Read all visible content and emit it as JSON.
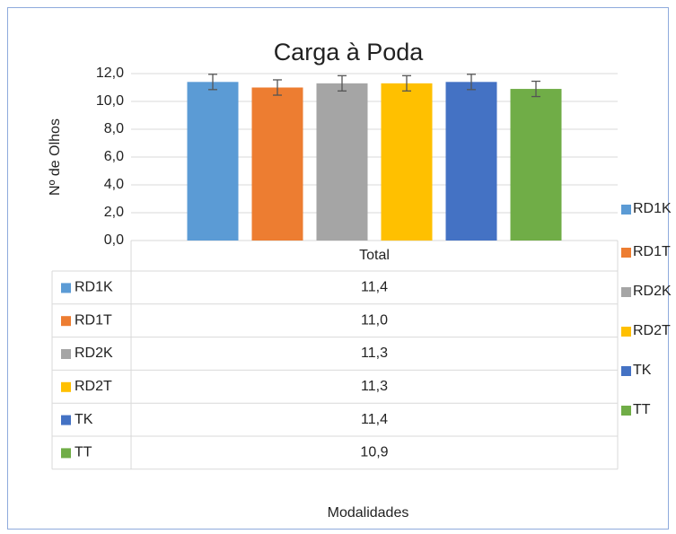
{
  "chart_data": {
    "type": "bar",
    "title": "Carga à Poda",
    "y_label": "Nº de Olhos",
    "x_label": "Modalidades",
    "categories": [
      "Total"
    ],
    "series": [
      {
        "name": "RD1K",
        "color": "#5b9bd5",
        "values": [
          11.4
        ],
        "value_labels": [
          "11,4"
        ],
        "errors": [
          0.55
        ]
      },
      {
        "name": "RD1T",
        "color": "#ed7d31",
        "values": [
          11.0
        ],
        "value_labels": [
          "11,0"
        ],
        "errors": [
          0.55
        ]
      },
      {
        "name": "RD2K",
        "color": "#a5a5a5",
        "values": [
          11.3
        ],
        "value_labels": [
          "11,3"
        ],
        "errors": [
          0.55
        ]
      },
      {
        "name": "RD2T",
        "color": "#ffc000",
        "values": [
          11.3
        ],
        "value_labels": [
          "11,3"
        ],
        "errors": [
          0.55
        ]
      },
      {
        "name": "TK",
        "color": "#4472c4",
        "values": [
          11.4
        ],
        "value_labels": [
          "11,4"
        ],
        "errors": [
          0.55
        ]
      },
      {
        "name": "TT",
        "color": "#70ad47",
        "values": [
          10.9
        ],
        "value_labels": [
          "10,9"
        ],
        "errors": [
          0.55
        ]
      }
    ],
    "ylim": [
      0,
      12
    ],
    "yticks": [
      {
        "value": 0,
        "label": "0,0"
      },
      {
        "value": 2,
        "label": "2,0"
      },
      {
        "value": 4,
        "label": "4,0"
      },
      {
        "value": 6,
        "label": "6,0"
      },
      {
        "value": 8,
        "label": "8,0"
      },
      {
        "value": 10,
        "label": "10,0"
      },
      {
        "value": 12,
        "label": "12,0"
      }
    ],
    "grid": true,
    "legend": "right"
  }
}
